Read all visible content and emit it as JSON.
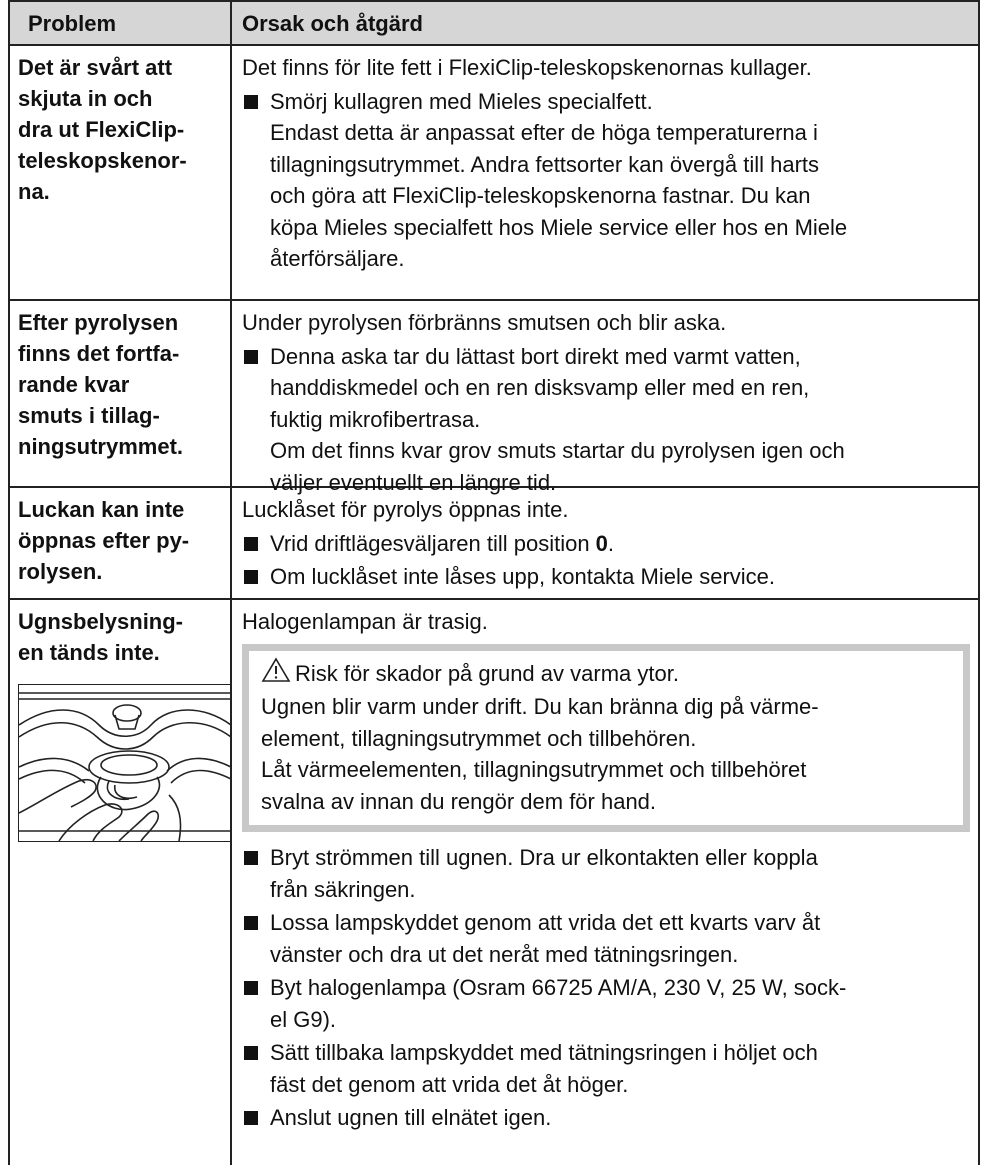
{
  "table": {
    "header": {
      "problem": "Problem",
      "cause": "Orsak och åtgärd"
    },
    "rows": [
      {
        "problem": [
          "Det är svårt att",
          "skjuta in och",
          "dra ut FlexiClip-",
          "teleskopskenor-",
          "na."
        ],
        "cause": "Det finns för lite fett i FlexiClip-teleskopskenornas kullager.",
        "steps": [
          {
            "lines": [
              "Smörj kullagren med Mieles specialfett.",
              "Endast detta är anpassat efter de höga temperaturerna i",
              "tillagningsutrymmet. Andra fettsorter kan övergå till harts",
              "och göra att FlexiClip-teleskopskenorna fastnar. Du kan",
              "köpa Mieles specialfett hos Miele service eller hos en Miele",
              "återförsäljare."
            ]
          }
        ]
      },
      {
        "problem": [
          "Efter pyrolysen",
          "finns det fortfa-",
          "rande kvar",
          "smuts i tillag-",
          "ningsutrymmet."
        ],
        "cause": "Under pyrolysen förbränns smutsen och blir aska.",
        "steps": [
          {
            "lines": [
              "Denna aska tar du lättast bort direkt med varmt vatten,",
              "handdiskmedel och en ren disksvamp eller med en ren,",
              "fuktig mikrofibertrasa.",
              "Om det finns kvar grov smuts startar du pyrolysen igen och",
              "väljer eventuellt en längre tid."
            ]
          }
        ]
      },
      {
        "problem": [
          "Luckan kan inte",
          "öppnas efter py-",
          "rolysen."
        ],
        "cause": "Lucklåset för pyrolys öppnas inte.",
        "steps": [
          {
            "text": "Vrid driftlägesväljaren till position ",
            "bold": "0",
            "end": "."
          },
          {
            "lines": [
              "Om lucklåset inte låses upp, kontakta Miele service."
            ]
          }
        ]
      },
      {
        "problem": [
          "Ugnsbelysning-",
          "en tänds inte."
        ],
        "cause": "Halogenlampan är trasig.",
        "warning": {
          "title": "Risk för skador på grund av varma ytor.",
          "lines": [
            "Ugnen blir varm under drift. Du kan bränna dig på värme-",
            "element, tillagningsutrymmet och tillbehören.",
            "Låt värmeelementen, tillagningsutrymmet och tillbehöret",
            "svalna av innan du rengör dem för hand."
          ]
        },
        "steps": [
          {
            "lines": [
              "Bryt strömmen till ugnen. Dra ur elkontakten eller koppla",
              "från säkringen."
            ]
          },
          {
            "lines": [
              "Lossa lampskyddet genom att vrida det ett kvarts varv åt",
              "vänster och dra ut det neråt med tätningsringen."
            ]
          },
          {
            "lines": [
              "Byt halogenlampa (Osram 66725 AM/A, 230 V, 25 W, sock-",
              "el G9)."
            ]
          },
          {
            "lines": [
              "Sätt tillbaka lampskyddet med tätningsringen i höljet och",
              "fäst det genom att vrida det åt höger."
            ]
          },
          {
            "lines": [
              "Anslut ugnen till elnätet igen."
            ]
          }
        ]
      }
    ]
  }
}
